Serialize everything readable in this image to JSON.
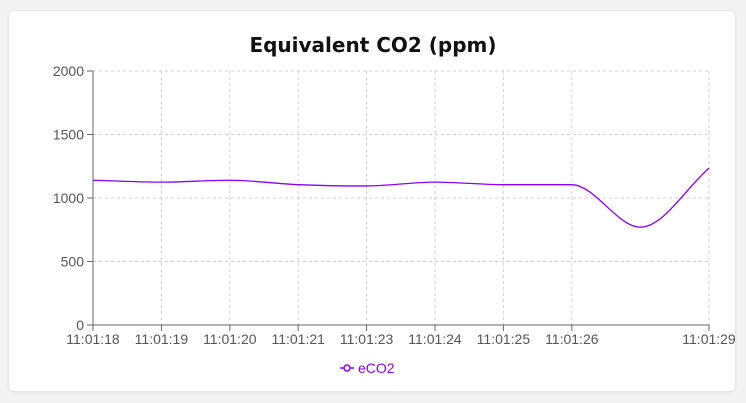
{
  "chart_data": {
    "type": "line",
    "title": "Equivalent CO2 (ppm)",
    "xlabel": "",
    "ylabel": "",
    "x_ticks": [
      "11:01:18",
      "11:01:19",
      "11:01:20",
      "11:01:21",
      "11:01:23",
      "11:01:24",
      "11:01:25",
      "11:01:26",
      "11:01:29"
    ],
    "y_ticks": [
      "0",
      "500",
      "1000",
      "1500",
      "2000"
    ],
    "ylim": [
      0,
      2000
    ],
    "grid": true,
    "legend_position": "bottom",
    "series": [
      {
        "name": "eCO2",
        "color": "#8a00ff",
        "x": [
          "11:01:18",
          "11:01:19",
          "11:01:20",
          "11:01:21",
          "11:01:23",
          "11:01:24",
          "11:01:25",
          "11:01:26",
          "",
          "11:01:29"
        ],
        "values": [
          1140,
          1125,
          1140,
          1105,
          1095,
          1125,
          1105,
          1105,
          770,
          1235
        ]
      }
    ]
  }
}
